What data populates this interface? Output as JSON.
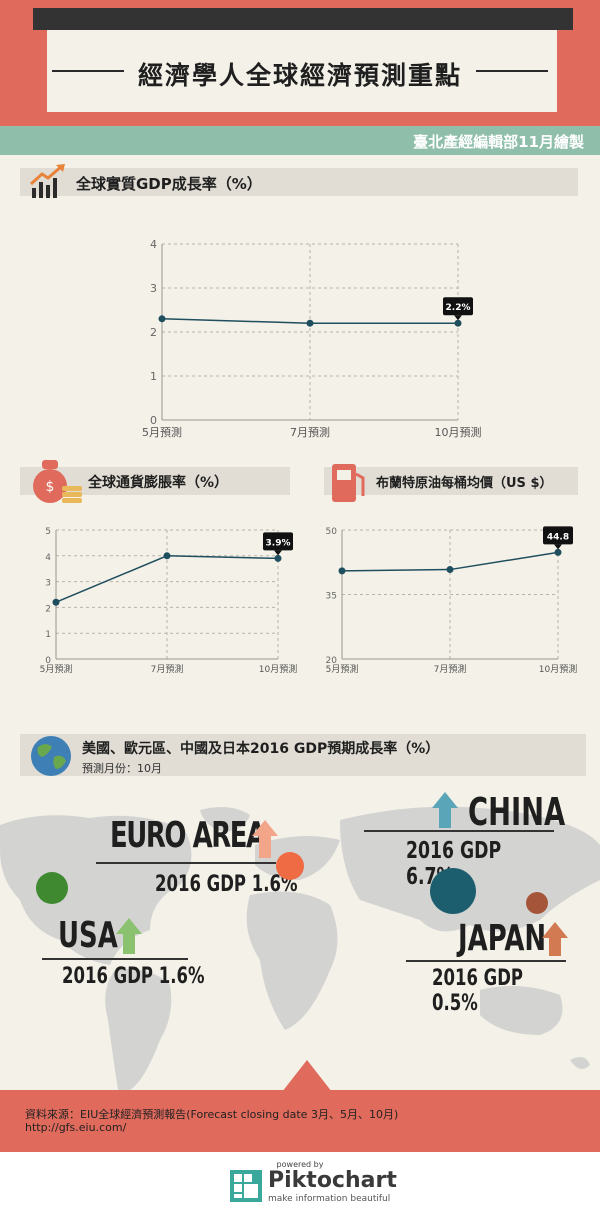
{
  "header": {
    "title": "經濟學人全球經濟預測重點",
    "credit": "臺北產經編輯部11月繪製"
  },
  "gdp_section": {
    "title": "全球實質GDP成長率（%）"
  },
  "inflation_section": {
    "title": "全球通貨膨脹率（%）"
  },
  "oil_section": {
    "title": "布蘭特原油每桶均價（US $）"
  },
  "map_section": {
    "title": "美國、歐元區、中國及日本2016 GDP預期成長率（%）",
    "subtitle": "預測月份：10月"
  },
  "chart_data": [
    {
      "type": "line",
      "categories": [
        "5月預測",
        "7月預測",
        "10月預測"
      ],
      "values": [
        2.3,
        2.2,
        2.2
      ],
      "ylim": [
        0,
        4
      ],
      "yticks": [
        "0",
        "1",
        "2",
        "3",
        "4"
      ],
      "data_label": "2.2%",
      "color": "#1f4e5e"
    },
    {
      "type": "line",
      "categories": [
        "5月預測",
        "7月預測",
        "10月預測"
      ],
      "values": [
        2.2,
        4.0,
        3.9
      ],
      "ylim": [
        0,
        5
      ],
      "yticks": [
        "0",
        "1",
        "2",
        "3",
        "4",
        "5"
      ],
      "data_label": "3.9%",
      "color": "#1f4e5e"
    },
    {
      "type": "line",
      "categories": [
        "5月預測",
        "7月預測",
        "10月預測"
      ],
      "values": [
        40.5,
        40.8,
        44.8
      ],
      "ylim": [
        20,
        50
      ],
      "yticks": [
        "20",
        "35",
        "50"
      ],
      "data_label": "44.8",
      "color": "#1f4e5e"
    }
  ],
  "regions": {
    "euro": {
      "name": "EURO AREA",
      "gdp": "2016 GDP 1.6%",
      "color": "#ee6b43"
    },
    "usa": {
      "name": "USA",
      "gdp": "2016 GDP 1.6%",
      "color": "#3f8a31"
    },
    "china": {
      "name": "CHINA",
      "gdp": "2016 GDP 6.7%",
      "color": "#1d5e6e"
    },
    "japan": {
      "name": "JAPAN",
      "gdp": "2016 GDP 0.5%",
      "color": "#a5553a"
    }
  },
  "footer": {
    "source": "資料來源：EIU全球經濟預測報告(Forecast closing date 3月、5月、10月)",
    "url": "http://gfs.eiu.com/"
  },
  "brand": {
    "powered": "powered by",
    "name": "Piktochart",
    "tagline": "make information beautiful"
  }
}
